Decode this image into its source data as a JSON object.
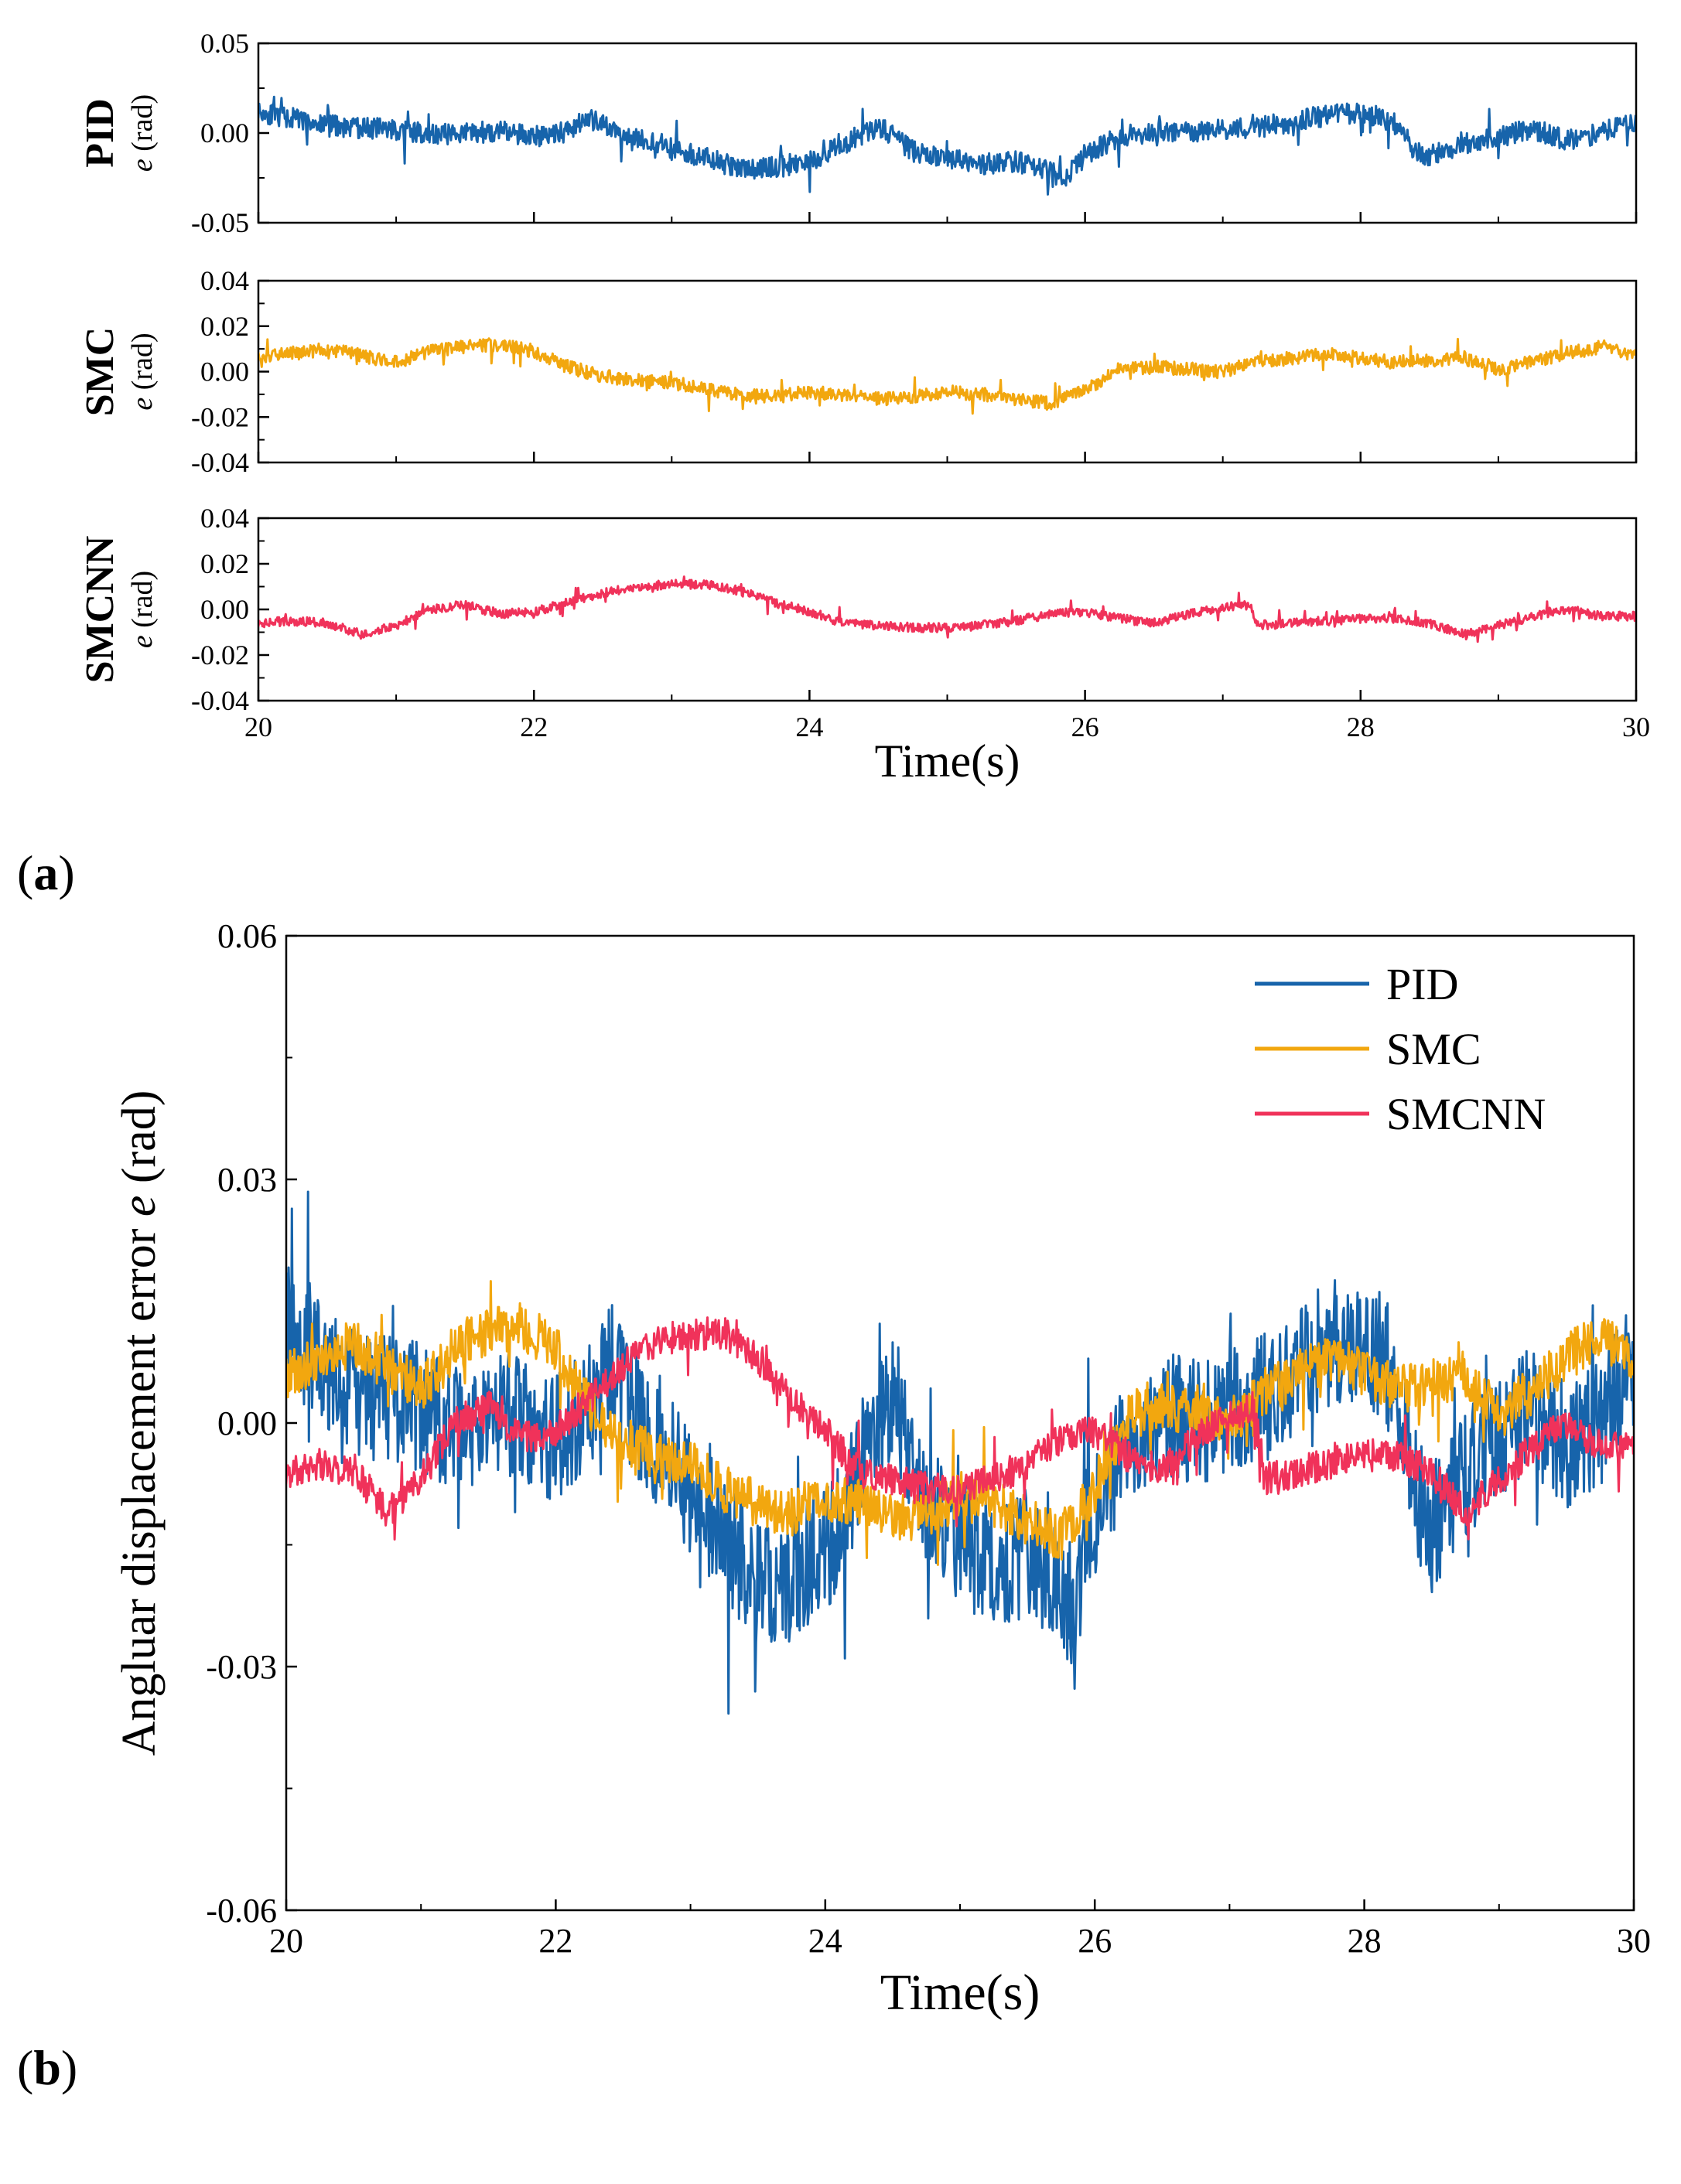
{
  "panel_a_label": {
    "open": "(",
    "letter": "a",
    "close": ")"
  },
  "panel_b_label": {
    "open": "(",
    "letter": "b",
    "close": ")"
  },
  "chart_data": [
    {
      "type": "line",
      "id": "a-pid",
      "panel": "a",
      "row_label": "PID",
      "ylabel_var": "e",
      "ylabel_unit": " (rad)",
      "xlabel": "",
      "xlim": [
        20,
        30
      ],
      "ylim": [
        -0.05,
        0.05
      ],
      "yticks": [
        "0.05",
        "0.00",
        "-0.05"
      ],
      "xticks": [],
      "color": "#1764AB",
      "series": [
        {
          "name": "PID",
          "x": [
            20,
            20.25,
            20.5,
            20.75,
            21,
            21.25,
            21.5,
            21.75,
            22,
            22.25,
            22.4,
            22.5,
            22.75,
            23,
            23.25,
            23.5,
            23.75,
            24,
            24.25,
            24.5,
            24.75,
            25,
            25.25,
            25.5,
            25.75,
            25.85,
            26,
            26.25,
            26.5,
            26.75,
            27,
            27.25,
            27.5,
            27.75,
            28,
            28.25,
            28.4,
            28.5,
            28.75,
            29,
            29.25,
            29.5,
            29.75,
            30
          ],
          "values": [
            0.012,
            0.008,
            0.004,
            0.003,
            0.002,
            -0.001,
            0.0,
            0.001,
            -0.002,
            0.002,
            0.008,
            0.004,
            -0.003,
            -0.008,
            -0.014,
            -0.02,
            -0.019,
            -0.016,
            -0.006,
            0.004,
            -0.01,
            -0.015,
            -0.017,
            -0.016,
            -0.022,
            -0.025,
            -0.012,
            -0.002,
            0.001,
            0.0,
            0.002,
            0.003,
            0.006,
            0.01,
            0.011,
            0.005,
            -0.01,
            -0.013,
            -0.006,
            -0.002,
            0.002,
            -0.004,
            0.0,
            0.007
          ]
        }
      ]
    },
    {
      "type": "line",
      "id": "a-smc",
      "panel": "a",
      "row_label": "SMC",
      "ylabel_var": "e",
      "ylabel_unit": " (rad)",
      "xlabel": "",
      "xlim": [
        20,
        30
      ],
      "ylim": [
        -0.04,
        0.04
      ],
      "yticks": [
        "0.04",
        "0.02",
        "0.00",
        "-0.02",
        "-0.04"
      ],
      "xticks": [],
      "color": "#F2A70F",
      "series": [
        {
          "name": "SMC",
          "x": [
            20,
            20.25,
            20.5,
            20.75,
            21,
            21.25,
            21.5,
            21.75,
            22,
            22.25,
            22.5,
            22.75,
            23,
            23.25,
            23.5,
            23.75,
            24,
            24.25,
            24.5,
            24.75,
            25,
            25.25,
            25.5,
            25.75,
            26,
            26.25,
            26.5,
            26.75,
            27,
            27.25,
            27.5,
            27.75,
            28,
            28.25,
            28.5,
            28.75,
            29,
            29.25,
            29.5,
            29.75,
            30
          ],
          "values": [
            0.006,
            0.008,
            0.01,
            0.007,
            0.004,
            0.009,
            0.011,
            0.012,
            0.009,
            0.002,
            -0.002,
            -0.004,
            -0.005,
            -0.008,
            -0.01,
            -0.011,
            -0.009,
            -0.01,
            -0.012,
            -0.011,
            -0.009,
            -0.01,
            -0.012,
            -0.014,
            -0.008,
            0.001,
            0.002,
            0.001,
            0.0,
            0.004,
            0.006,
            0.008,
            0.006,
            0.004,
            0.005,
            0.006,
            0.001,
            0.004,
            0.008,
            0.011,
            0.007
          ]
        }
      ]
    },
    {
      "type": "line",
      "id": "a-smcnn",
      "panel": "a",
      "row_label": "SMCNN",
      "ylabel_var": "e",
      "ylabel_unit": " (rad)",
      "xlabel": "Time(s)",
      "xlim": [
        20,
        30
      ],
      "ylim": [
        -0.04,
        0.04
      ],
      "yticks": [
        "0.04",
        "0.02",
        "0.00",
        "-0.02",
        "-0.04"
      ],
      "xticks": [
        "20",
        "22",
        "24",
        "26",
        "28",
        "30"
      ],
      "color": "#F0325A",
      "series": [
        {
          "name": "SMCNN",
          "x": [
            20,
            20.25,
            20.5,
            20.75,
            21,
            21.25,
            21.5,
            21.75,
            22,
            22.25,
            22.5,
            22.75,
            23,
            23.25,
            23.5,
            23.75,
            24,
            24.25,
            24.5,
            24.75,
            25,
            25.25,
            25.5,
            25.75,
            26,
            26.25,
            26.5,
            26.75,
            27,
            27.2,
            27.25,
            27.5,
            27.75,
            28,
            28.25,
            28.5,
            28.75,
            29,
            29.25,
            29.5,
            29.75,
            30
          ],
          "values": [
            -0.006,
            -0.005,
            -0.006,
            -0.011,
            -0.007,
            0.0,
            0.002,
            -0.002,
            -0.001,
            0.003,
            0.007,
            0.01,
            0.011,
            0.011,
            0.008,
            0.003,
            -0.001,
            -0.006,
            -0.007,
            -0.008,
            -0.008,
            -0.007,
            -0.005,
            -0.002,
            -0.001,
            -0.004,
            -0.006,
            -0.002,
            0.001,
            0.002,
            -0.007,
            -0.006,
            -0.005,
            -0.004,
            -0.004,
            -0.006,
            -0.011,
            -0.007,
            -0.003,
            0.0,
            -0.003,
            -0.003
          ]
        }
      ]
    },
    {
      "type": "line",
      "id": "b-combined",
      "panel": "b",
      "title": "",
      "xlabel": "Time(s)",
      "ylabel_prefix": "Angluar displacement error ",
      "ylabel_var": "e",
      "ylabel_unit": " (rad)",
      "xlim": [
        20,
        30
      ],
      "ylim": [
        -0.06,
        0.06
      ],
      "yticks": [
        "0.06",
        "0.03",
        "0.00",
        "-0.03",
        "-0.06"
      ],
      "xticks": [
        "20",
        "22",
        "24",
        "26",
        "28",
        "30"
      ],
      "legend_position": "top-right",
      "series": [
        {
          "name": "PID",
          "color": "#1764AB",
          "x": [
            20,
            20.25,
            20.5,
            20.75,
            21,
            21.25,
            21.5,
            21.75,
            22,
            22.25,
            22.4,
            22.5,
            22.75,
            23,
            23.25,
            23.5,
            23.75,
            24,
            24.25,
            24.5,
            24.75,
            25,
            25.25,
            25.5,
            25.75,
            25.85,
            26,
            26.25,
            26.5,
            26.75,
            27,
            27.25,
            27.5,
            27.75,
            28,
            28.25,
            28.4,
            28.5,
            28.75,
            29,
            29.25,
            29.5,
            29.75,
            30
          ],
          "values": [
            0.012,
            0.008,
            0.004,
            0.003,
            0.002,
            -0.001,
            0.0,
            0.001,
            -0.002,
            0.002,
            0.008,
            0.004,
            -0.003,
            -0.008,
            -0.014,
            -0.02,
            -0.019,
            -0.016,
            -0.006,
            0.004,
            -0.01,
            -0.015,
            -0.017,
            -0.016,
            -0.022,
            -0.025,
            -0.012,
            -0.002,
            0.001,
            0.0,
            0.002,
            0.003,
            0.006,
            0.01,
            0.011,
            0.005,
            -0.01,
            -0.013,
            -0.006,
            -0.002,
            0.002,
            -0.004,
            0.0,
            0.007
          ]
        },
        {
          "name": "SMC",
          "color": "#F2A70F",
          "x": [
            20,
            20.25,
            20.5,
            20.75,
            21,
            21.25,
            21.5,
            21.75,
            22,
            22.25,
            22.5,
            22.75,
            23,
            23.25,
            23.5,
            23.75,
            24,
            24.25,
            24.5,
            24.75,
            25,
            25.25,
            25.5,
            25.75,
            26,
            26.25,
            26.5,
            26.75,
            27,
            27.25,
            27.5,
            27.75,
            28,
            28.25,
            28.5,
            28.75,
            29,
            29.25,
            29.5,
            29.75,
            30
          ],
          "values": [
            0.006,
            0.008,
            0.01,
            0.007,
            0.004,
            0.009,
            0.011,
            0.012,
            0.009,
            0.002,
            -0.002,
            -0.004,
            -0.005,
            -0.008,
            -0.01,
            -0.011,
            -0.009,
            -0.01,
            -0.012,
            -0.011,
            -0.009,
            -0.01,
            -0.012,
            -0.014,
            -0.008,
            0.001,
            0.002,
            0.001,
            0.0,
            0.004,
            0.006,
            0.008,
            0.006,
            0.004,
            0.005,
            0.006,
            0.001,
            0.004,
            0.008,
            0.011,
            0.007
          ]
        },
        {
          "name": "SMCNN",
          "color": "#F0325A",
          "x": [
            20,
            20.25,
            20.5,
            20.75,
            21,
            21.25,
            21.5,
            21.75,
            22,
            22.25,
            22.5,
            22.75,
            23,
            23.25,
            23.5,
            23.75,
            24,
            24.25,
            24.5,
            24.75,
            25,
            25.25,
            25.5,
            25.75,
            26,
            26.25,
            26.5,
            26.75,
            27,
            27.2,
            27.25,
            27.5,
            27.75,
            28,
            28.25,
            28.5,
            28.75,
            29,
            29.25,
            29.5,
            29.75,
            30
          ],
          "values": [
            -0.006,
            -0.005,
            -0.006,
            -0.011,
            -0.007,
            0.0,
            0.002,
            -0.002,
            -0.001,
            0.003,
            0.007,
            0.01,
            0.011,
            0.011,
            0.008,
            0.003,
            -0.001,
            -0.006,
            -0.007,
            -0.008,
            -0.008,
            -0.007,
            -0.005,
            -0.002,
            -0.001,
            -0.004,
            -0.006,
            -0.002,
            0.001,
            0.002,
            -0.007,
            -0.006,
            -0.005,
            -0.004,
            -0.004,
            -0.006,
            -0.011,
            -0.007,
            -0.003,
            0.0,
            -0.003,
            -0.003
          ]
        }
      ]
    }
  ]
}
